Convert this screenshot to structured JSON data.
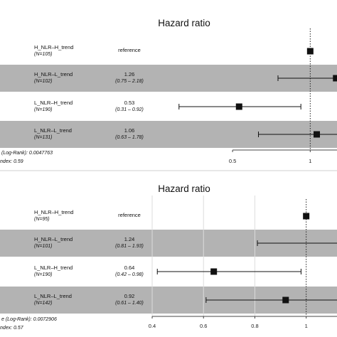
{
  "chart_data": [
    {
      "type": "forest",
      "title": "Hazard ratio",
      "reference_line": 1,
      "x_axis_scale": "log",
      "xlim": [
        0.27,
        1.27
      ],
      "ticks": [
        {
          "value": 0.5,
          "label": "0.5"
        },
        {
          "value": 1,
          "label": "1"
        }
      ],
      "grid": false,
      "rows": [
        {
          "group": "H_NLR–H_trend",
          "n": "(N=105)",
          "hr_text": "reference",
          "ci_text": "",
          "hr": 1,
          "lower": null,
          "upper": null,
          "reference": true,
          "shaded": false
        },
        {
          "group": "H_NLR–L_trend",
          "n": "(N=102)",
          "hr_text": "1.26",
          "ci_text": "(0.75 – 2.18)",
          "hr": 1.26,
          "lower": 0.75,
          "upper": 2.18,
          "reference": false,
          "shaded": true
        },
        {
          "group": "L_NLR–H_trend",
          "n": "(N=190)",
          "hr_text": "0.53",
          "ci_text": "(0.31 – 0.92)",
          "hr": 0.53,
          "lower": 0.31,
          "upper": 0.92,
          "reference": false,
          "shaded": false
        },
        {
          "group": "L_NLR–L_trend",
          "n": "(N=131)",
          "hr_text": "1.06",
          "ci_text": "(0.63 – 1.78)",
          "hr": 1.06,
          "lower": 0.63,
          "upper": 1.78,
          "reference": false,
          "shaded": true
        }
      ],
      "footer": [
        "(Log-Rank): 0.0047763",
        "ndex: 0.59"
      ]
    },
    {
      "type": "forest",
      "title": "Hazard ratio",
      "reference_line": 1,
      "x_axis_scale": "linear",
      "xlim": [
        0.375,
        1.12
      ],
      "ticks": [
        {
          "value": 0.4,
          "label": "0.4"
        },
        {
          "value": 0.6,
          "label": "0.6"
        },
        {
          "value": 0.8,
          "label": "0.8"
        },
        {
          "value": 1,
          "label": "1"
        }
      ],
      "grid": true,
      "rows": [
        {
          "group": "H_NLR–H_trend",
          "n": "(N=95)",
          "hr_text": "reference",
          "ci_text": "",
          "hr": 1,
          "lower": null,
          "upper": null,
          "reference": true,
          "shaded": false
        },
        {
          "group": "H_NLR–L_trend",
          "n": "(N=101)",
          "hr_text": "1.24",
          "ci_text": "(0.81 – 1.93)",
          "hr": 1.24,
          "lower": 0.81,
          "upper": 1.93,
          "reference": false,
          "shaded": true
        },
        {
          "group": "L_NLR–H_trend",
          "n": "(N=190)",
          "hr_text": "0.64",
          "ci_text": "(0.42 – 0.98)",
          "hr": 0.64,
          "lower": 0.42,
          "upper": 0.98,
          "reference": false,
          "shaded": false
        },
        {
          "group": "L_NLR–L_trend",
          "n": "(N=142)",
          "hr_text": "0.92",
          "ci_text": "(0.61 – 1.40)",
          "hr": 0.92,
          "lower": 0.61,
          "upper": 1.4,
          "reference": false,
          "shaded": true
        }
      ],
      "footer": [
        "e (Log-Rank): 0.0072906",
        "ndex: 0.57"
      ]
    }
  ],
  "colors": {
    "shade": "#b3b3b3",
    "marker": "#111111",
    "grid": "#dcdcdc",
    "axis": "#444444"
  }
}
